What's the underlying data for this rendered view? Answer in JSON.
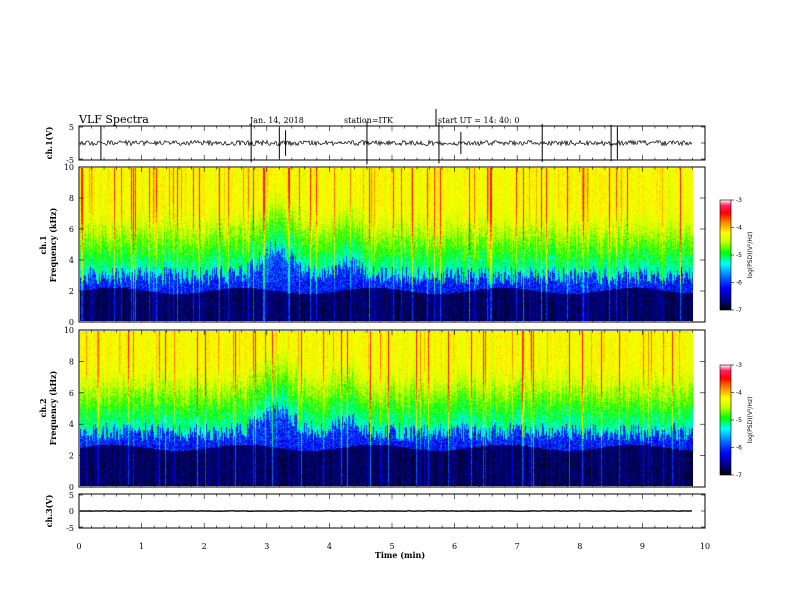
{
  "header": {
    "title": "VLF Spectra",
    "date": "Jan. 14, 2018",
    "station": "station=ITK",
    "start": "start UT =  14: 40: 0"
  },
  "chart_data": [
    {
      "type": "line",
      "name": "ch1-waveform",
      "ylabel": "ch.1(V)",
      "ylim": [
        -5,
        5
      ],
      "yticks": [
        "5",
        "-5"
      ],
      "xlim": [
        0,
        10
      ],
      "baseline": 0,
      "spikes_min": [
        0.35,
        2.75,
        3.2,
        3.3,
        4.6,
        5.75,
        6.1,
        7.4,
        8.5,
        8.6
      ]
    },
    {
      "type": "heatmap",
      "name": "ch1-spectrogram",
      "ylabel": "ch.1\nFrequency (kHz)",
      "ylim": [
        0,
        10
      ],
      "yticks": [
        "0",
        "2",
        "4",
        "6",
        "8",
        "10"
      ],
      "xlim": [
        0,
        9.85
      ],
      "colorbar": {
        "label": "log(PSD)(V²/Hz)",
        "range": [
          -7,
          -3
        ],
        "ticks": [
          "-3",
          "-4",
          "-5",
          "-6",
          "-7"
        ],
        "colors": [
          "#000000",
          "#00007a",
          "#0000ff",
          "#0080ff",
          "#00ffff",
          "#00ff00",
          "#c8ff00",
          "#ffff00",
          "#ff8000",
          "#ff0000",
          "#ff2060",
          "#ffffff"
        ]
      },
      "noise_floor_khz": 2.0,
      "hiss_upper_khz": 6.0,
      "depression": {
        "center_min": 3.15,
        "width_min": 0.7,
        "depth_khz": 3.5
      }
    },
    {
      "type": "heatmap",
      "name": "ch2-spectrogram",
      "ylabel": "ch.2\nFrequency (kHz)",
      "ylim": [
        0,
        10
      ],
      "yticks": [
        "0",
        "2",
        "4",
        "6",
        "8",
        "10"
      ],
      "xlim": [
        0,
        9.85
      ],
      "colorbar": {
        "label": "log(PSD)(V²/Hz)",
        "range": [
          -7,
          -3
        ],
        "ticks": [
          "-3",
          "-4",
          "-5",
          "-6",
          "-7"
        ],
        "colors": [
          "#000000",
          "#00007a",
          "#0000ff",
          "#0080ff",
          "#00ffff",
          "#00ff00",
          "#c8ff00",
          "#ffff00",
          "#ff8000",
          "#ff0000",
          "#ff2060",
          "#ffffff"
        ]
      },
      "noise_floor_khz": 2.5,
      "hiss_upper_khz": 6.0,
      "depression": {
        "center_min": 3.15,
        "width_min": 0.7,
        "depth_khz": 3.0
      }
    },
    {
      "type": "line",
      "name": "ch3-waveform",
      "ylabel": "ch.3(V)",
      "ylim": [
        -5,
        5
      ],
      "yticks": [
        "5",
        "0",
        "-5"
      ],
      "xlim": [
        0,
        10
      ],
      "baseline": 0
    }
  ],
  "xaxis": {
    "label": "Time (min)",
    "ticks": [
      "0",
      "1",
      "2",
      "3",
      "4",
      "5",
      "6",
      "7",
      "8",
      "9",
      "10"
    ]
  }
}
